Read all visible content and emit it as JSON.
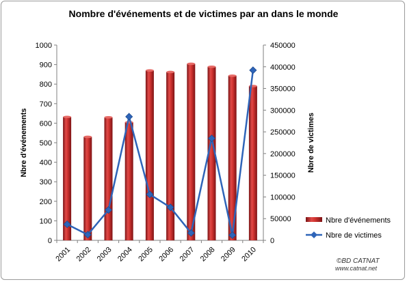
{
  "chart_data": {
    "type": "bar",
    "title": "Nombre d'événements et de victimes par an dans le monde",
    "categories": [
      "2001",
      "2002",
      "2003",
      "2004",
      "2005",
      "2006",
      "2007",
      "2008",
      "2009",
      "2010"
    ],
    "series": [
      {
        "name": "Nbre d'événements",
        "type": "bar",
        "axis": "left",
        "color": "#c0282a",
        "values": [
          632,
          530,
          630,
          605,
          870,
          862,
          904,
          889,
          843,
          790
        ]
      },
      {
        "name": "Nbre de victimes",
        "type": "line",
        "axis": "right",
        "color": "#2e64b8",
        "values": [
          37000,
          13000,
          70000,
          285000,
          106000,
          76000,
          17000,
          235000,
          12000,
          392000
        ]
      }
    ],
    "ylabel": "Nbre d'événements",
    "y2label": "Nbre de victimes",
    "ylim": [
      0,
      1000
    ],
    "y2lim": [
      0,
      450000
    ],
    "yticks": [
      "0",
      "100",
      "200",
      "300",
      "400",
      "500",
      "600",
      "700",
      "800",
      "900",
      "1000"
    ],
    "y2ticks": [
      "0",
      "50000",
      "100000",
      "150000",
      "200000",
      "250000",
      "300000",
      "350000",
      "400000",
      "450000"
    ],
    "grid": false,
    "legend_position": "right"
  },
  "credit": {
    "line1": "©BD CATNAT",
    "line2": "www.catnat.net"
  }
}
